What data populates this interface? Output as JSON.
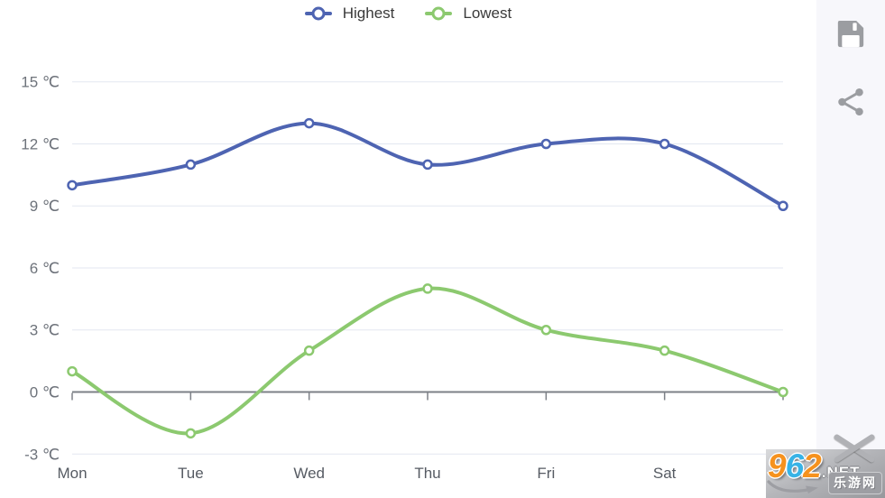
{
  "legend": {
    "items": [
      {
        "label": "Highest",
        "color": "#4e64b2"
      },
      {
        "label": "Lowest",
        "color": "#8cc96f"
      }
    ]
  },
  "side_panel": {
    "icons": [
      {
        "name": "save-icon"
      },
      {
        "name": "share-icon"
      }
    ]
  },
  "watermark": {
    "digits": [
      {
        "char": "9",
        "color": "#f6921e"
      },
      {
        "char": "6",
        "color": "#38b3e6"
      },
      {
        "char": "2",
        "color": "#f6921e"
      }
    ],
    "tld": ".NET",
    "site_name_cn": "乐游网"
  },
  "chart_data": {
    "type": "line",
    "smooth": true,
    "categories": [
      "Mon",
      "Tue",
      "Wed",
      "Thu",
      "Fri",
      "Sat",
      ""
    ],
    "series": [
      {
        "name": "Highest",
        "color": "#4e64b2",
        "values": [
          10,
          11,
          13,
          11,
          12,
          12,
          9
        ]
      },
      {
        "name": "Lowest",
        "color": "#8cc96f",
        "values": [
          1,
          -2,
          2,
          5,
          3,
          2,
          0
        ]
      }
    ],
    "y_ticks": [
      15,
      12,
      9,
      6,
      3,
      0,
      -3
    ],
    "y_unit": "℃",
    "ylim": [
      -3,
      15
    ],
    "xlabel": "",
    "ylabel": "",
    "grid": true,
    "legend_position": "top"
  },
  "colors": {
    "grid_line": "#e3e7f0",
    "axis_line": "#7d8187",
    "y_label": "#6e737b",
    "x_label": "#565b63",
    "legend_text": "#3a3a3a",
    "icon_gray": "#9b9da1",
    "panel_bg": "#f7f7fb",
    "background": "#ffffff"
  }
}
